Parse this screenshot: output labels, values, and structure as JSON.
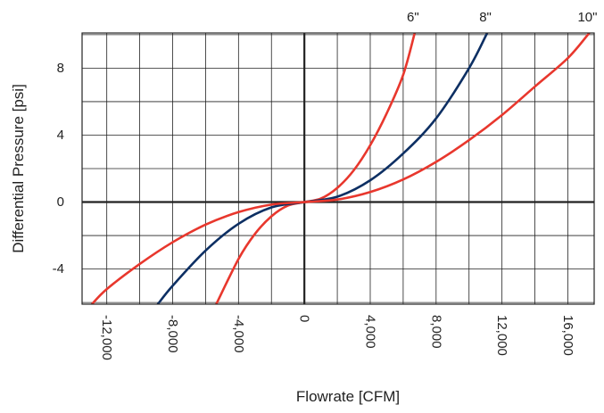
{
  "chart_data": {
    "type": "line",
    "title": "",
    "xlabel": "Flowrate [CFM]",
    "ylabel": "Differential Pressure [psi]",
    "xlim": [
      -13500,
      17600
    ],
    "ylim": [
      -6.1,
      10.1
    ],
    "x_ticks": [
      {
        "value": -12000,
        "label": "-12,000"
      },
      {
        "value": -8000,
        "label": "-8,000"
      },
      {
        "value": -4000,
        "label": "-4,000"
      },
      {
        "value": 0,
        "label": "0"
      },
      {
        "value": 4000,
        "label": "4,000"
      },
      {
        "value": 8000,
        "label": "8,000"
      },
      {
        "value": 12000,
        "label": "12,000"
      },
      {
        "value": 16000,
        "label": "16,000"
      }
    ],
    "y_ticks": [
      {
        "value": 8,
        "label": "8"
      },
      {
        "value": 4,
        "label": "4"
      },
      {
        "value": 0,
        "label": "0"
      },
      {
        "value": -4,
        "label": "-4"
      }
    ],
    "grid": true,
    "legend": "none",
    "series": [
      {
        "name": "6\"",
        "color": "#e8372d",
        "x": [
          -5350,
          -4000,
          -3000,
          -2000,
          -1000,
          0,
          1000,
          2000,
          3000,
          4000,
          5000,
          6000,
          6700
        ],
        "y": [
          -6.1,
          -3.4,
          -1.9,
          -0.85,
          -0.21,
          0,
          0.21,
          0.85,
          1.9,
          3.4,
          5.3,
          7.6,
          10.1
        ]
      },
      {
        "name": "8\"",
        "color": "#0d2f63",
        "x": [
          -8900,
          -8000,
          -6000,
          -4000,
          -2000,
          0,
          2000,
          4000,
          6000,
          8000,
          10000,
          11100
        ],
        "y": [
          -6.1,
          -5.0,
          -2.9,
          -1.3,
          -0.32,
          0,
          0.32,
          1.3,
          2.9,
          5.0,
          8.0,
          10.1
        ]
      },
      {
        "name": "10\"",
        "color": "#e8372d",
        "x": [
          -12900,
          -12000,
          -10000,
          -8000,
          -6000,
          -4000,
          -2000,
          0,
          2000,
          4000,
          6000,
          8000,
          10000,
          12000,
          14000,
          16000,
          17300
        ],
        "y": [
          -6.1,
          -5.2,
          -3.7,
          -2.4,
          -1.35,
          -0.6,
          -0.15,
          0,
          0.15,
          0.6,
          1.35,
          2.4,
          3.7,
          5.2,
          6.9,
          8.6,
          10.1
        ]
      }
    ]
  }
}
